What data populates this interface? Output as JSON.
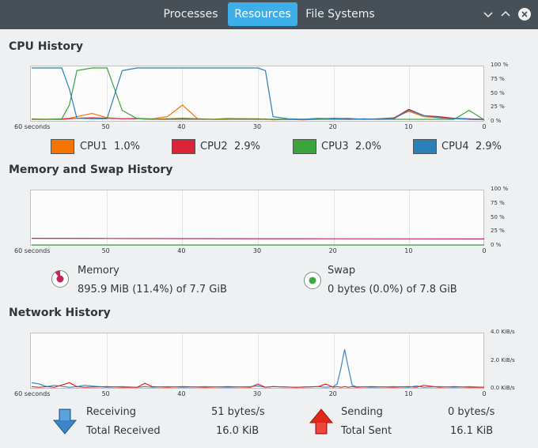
{
  "header": {
    "tabs": [
      {
        "label": "Processes",
        "active": false
      },
      {
        "label": "Resources",
        "active": true
      },
      {
        "label": "File Systems",
        "active": false
      }
    ],
    "window_controls": [
      "menu-chevron-down-icon",
      "minimize-chevron-up-icon",
      "close-icon"
    ]
  },
  "colors": {
    "accent": "#3daee9",
    "header_bg": "#475057",
    "cpu1": "#f67400",
    "cpu2": "#da2438",
    "cpu3": "#3ca43c",
    "cpu4": "#2a80b9",
    "memory": "#c1275a",
    "swap": "#43a747",
    "net_receiving": "#3b86c8",
    "net_sending": "#e1261c"
  },
  "cpu": {
    "title": "CPU History",
    "y_ticks": [
      "100 %",
      "75 %",
      "50 %",
      "25 %",
      "0 %"
    ],
    "x_ticks": [
      "60 seconds",
      "50",
      "40",
      "30",
      "20",
      "10",
      "0"
    ],
    "legend": [
      {
        "name": "CPU1",
        "value": "1.0%",
        "color": "#f67400"
      },
      {
        "name": "CPU2",
        "value": "2.9%",
        "color": "#da2438"
      },
      {
        "name": "CPU3",
        "value": "2.0%",
        "color": "#3ca43c"
      },
      {
        "name": "CPU4",
        "value": "2.9%",
        "color": "#2a80b9"
      }
    ]
  },
  "memory": {
    "title": "Memory and Swap History",
    "y_ticks": [
      "100 %",
      "75 %",
      "50 %",
      "25 %",
      "0 %"
    ],
    "x_ticks": [
      "60 seconds",
      "50",
      "40",
      "30",
      "20",
      "10",
      "0"
    ],
    "memory_label": "Memory",
    "memory_value": "895.9 MiB (11.4%) of 7.7 GiB",
    "swap_label": "Swap",
    "swap_value": "0 bytes (0.0%) of 7.8 GiB"
  },
  "network": {
    "title": "Network History",
    "y_ticks": [
      "4.0 KiB/s",
      "2.0 KiB/s",
      "0.0 KiB/s"
    ],
    "x_ticks": [
      "60 seconds",
      "50",
      "40",
      "30",
      "20",
      "10",
      "0"
    ],
    "receiving_label": "Receiving",
    "receiving_value": "51 bytes/s",
    "total_received_label": "Total Received",
    "total_received_value": "16.0 KiB",
    "sending_label": "Sending",
    "sending_value": "0 bytes/s",
    "total_sent_label": "Total Sent",
    "total_sent_value": "16.1 KiB"
  },
  "chart_data": [
    {
      "type": "line",
      "title": "CPU History",
      "xlabel": "",
      "ylabel": "",
      "x": [
        60,
        58,
        56,
        55,
        54,
        52,
        50,
        48,
        46,
        44,
        42,
        40,
        38,
        36,
        34,
        32,
        30,
        29,
        28,
        26,
        24,
        22,
        20,
        18,
        16,
        14,
        12,
        10,
        8,
        6,
        4,
        2,
        0
      ],
      "xlim": [
        60,
        0
      ],
      "ylim": [
        0,
        100
      ],
      "series": [
        {
          "name": "CPU1",
          "values": [
            4,
            3,
            4,
            5,
            8,
            14,
            6,
            4,
            5,
            4,
            8,
            30,
            4,
            3,
            5,
            4,
            3,
            4,
            2,
            3,
            2,
            3,
            4,
            5,
            3,
            4,
            6,
            18,
            8,
            6,
            5,
            3,
            2
          ]
        },
        {
          "name": "CPU2",
          "values": [
            3,
            3,
            3,
            4,
            5,
            6,
            5,
            4,
            4,
            3,
            4,
            5,
            4,
            3,
            3,
            4,
            4,
            3,
            3,
            3,
            3,
            4,
            5,
            4,
            3,
            4,
            5,
            22,
            10,
            8,
            5,
            4,
            3
          ]
        },
        {
          "name": "CPU3",
          "values": [
            3,
            3,
            4,
            30,
            95,
            100,
            100,
            20,
            4,
            3,
            3,
            3,
            3,
            3,
            3,
            3,
            3,
            3,
            3,
            3,
            3,
            3,
            3,
            3,
            3,
            3,
            3,
            3,
            3,
            3,
            3,
            20,
            2
          ]
        },
        {
          "name": "CPU4",
          "values": [
            100,
            100,
            100,
            60,
            5,
            4,
            4,
            95,
            100,
            100,
            100,
            100,
            100,
            100,
            100,
            100,
            100,
            95,
            8,
            4,
            3,
            5,
            4,
            3,
            4,
            3,
            4,
            20,
            10,
            6,
            4,
            3,
            3
          ]
        }
      ]
    },
    {
      "type": "line",
      "title": "Memory and Swap History",
      "xlabel": "",
      "ylabel": "",
      "x": [
        60,
        50,
        40,
        30,
        20,
        10,
        0
      ],
      "xlim": [
        60,
        0
      ],
      "ylim": [
        0,
        100
      ],
      "series": [
        {
          "name": "Memory",
          "values": [
            12.5,
            12.2,
            12.0,
            11.8,
            11.6,
            11.5,
            11.4
          ]
        },
        {
          "name": "Swap",
          "values": [
            0,
            0,
            0,
            0,
            0,
            0,
            0
          ]
        }
      ]
    },
    {
      "type": "line",
      "title": "Network History",
      "xlabel": "",
      "ylabel": "",
      "x": [
        60,
        59,
        58,
        57,
        55,
        54,
        53,
        50,
        48,
        46,
        45,
        44,
        42,
        40,
        37,
        34,
        31,
        30,
        29,
        28,
        25,
        22,
        21,
        20,
        19.5,
        19,
        18.5,
        18,
        17.5,
        17,
        15,
        12,
        10,
        9,
        8,
        6,
        4,
        2,
        0
      ],
      "xlim": [
        60,
        0
      ],
      "ylim": [
        0,
        4.0
      ],
      "series": [
        {
          "name": "Receiving",
          "values": [
            0.4,
            0.3,
            0.1,
            0.2,
            0.05,
            0.1,
            0.2,
            0.05,
            0.1,
            0.05,
            0.1,
            0.05,
            0.1,
            0.05,
            0.1,
            0.05,
            0.1,
            0.15,
            0.05,
            0.1,
            0.05,
            0.1,
            0.05,
            0.1,
            0.3,
            1.5,
            2.9,
            1.5,
            0.2,
            0.1,
            0.05,
            0.1,
            0.05,
            0.15,
            0.05,
            0.1,
            0.05,
            0.1,
            0.05
          ]
        },
        {
          "name": "Sending",
          "values": [
            0.1,
            0.05,
            0.1,
            0.05,
            0.4,
            0.1,
            0.05,
            0.1,
            0.05,
            0.05,
            0.35,
            0.1,
            0.05,
            0.1,
            0.05,
            0.1,
            0.05,
            0.3,
            0.05,
            0.1,
            0.05,
            0.1,
            0.3,
            0.05,
            0.1,
            0.05,
            0.1,
            0.05,
            0.1,
            0.05,
            0.1,
            0.05,
            0.1,
            0.05,
            0.2,
            0.05,
            0.1,
            0.05,
            0.05
          ]
        }
      ]
    }
  ]
}
